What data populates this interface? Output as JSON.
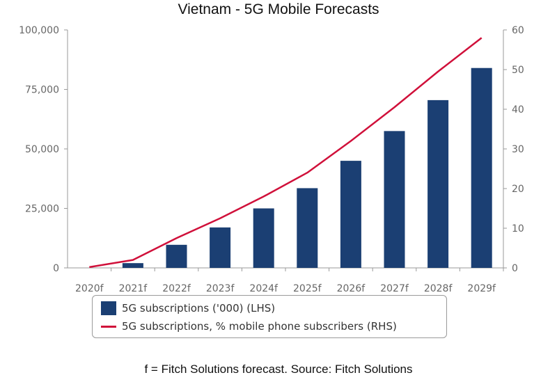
{
  "chart_data": {
    "type": "bar",
    "title": "Vietnam - 5G Mobile Forecasts",
    "categories": [
      "2020f",
      "2021f",
      "2022f",
      "2023f",
      "2024f",
      "2025f",
      "2026f",
      "2027f",
      "2028f",
      "2029f"
    ],
    "series": [
      {
        "name": "5G subscriptions ('000) (LHS)",
        "type": "bar",
        "axis": "left",
        "color": "#1b3f73",
        "values": [
          0,
          2000,
          9700,
          17000,
          25000,
          33500,
          45000,
          57500,
          70500,
          84000
        ]
      },
      {
        "name": "5G subscriptions, % mobile phone subscribers (RHS)",
        "type": "line",
        "axis": "right",
        "color": "#d0103a",
        "values": [
          0.2,
          2,
          7.5,
          12.5,
          18,
          24,
          32,
          40.5,
          49.5,
          58
        ]
      }
    ],
    "y_left": {
      "min": 0,
      "max": 100000,
      "ticks": [
        "0",
        "25,000",
        "50,000",
        "75,000",
        "100,000"
      ],
      "tick_values": [
        0,
        25000,
        50000,
        75000,
        100000
      ]
    },
    "y_right": {
      "min": 0,
      "max": 60,
      "ticks": [
        "0",
        "10",
        "20",
        "30",
        "40",
        "50",
        "60"
      ],
      "tick_values": [
        0,
        10,
        20,
        30,
        40,
        50,
        60
      ]
    },
    "grid": false,
    "legend_position": "bottom"
  },
  "footnote": "f = Fitch Solutions forecast. Source: Fitch Solutions"
}
